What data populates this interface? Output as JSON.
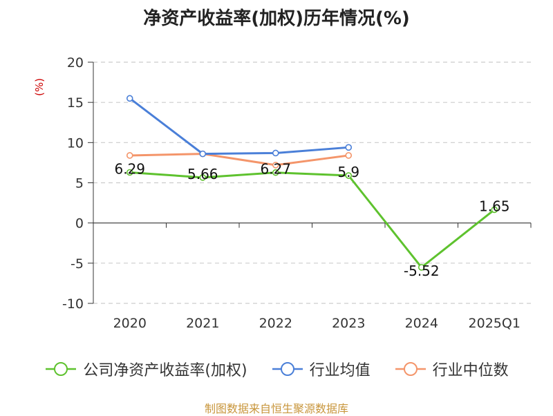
{
  "chart_data": {
    "type": "line",
    "title": "净资产收益率(加权)历年情况(%)",
    "ylabel": "(%)",
    "xlabel": "",
    "categories": [
      "2020",
      "2021",
      "2022",
      "2023",
      "2024",
      "2025Q1"
    ],
    "ylim": [
      -10,
      20
    ],
    "yticks": [
      "20",
      "15",
      "10",
      "5",
      "0",
      "-5",
      "-10"
    ],
    "grid": true,
    "legend_position": "bottom",
    "series": [
      {
        "name": "公司净资产收益率(加权)",
        "color": "#5ec22e",
        "values": [
          6.29,
          5.66,
          6.27,
          5.9,
          -5.52,
          1.65
        ],
        "labels": [
          "6.29",
          "5.66",
          "6.27",
          "5.9",
          "-5.52",
          "1.65"
        ]
      },
      {
        "name": "行业均值",
        "color": "#4a7fd8",
        "values": [
          15.5,
          8.6,
          8.7,
          9.4,
          null,
          null
        ]
      },
      {
        "name": "行业中位数",
        "color": "#f4956a",
        "values": [
          8.4,
          8.6,
          7.2,
          8.4,
          null,
          null
        ]
      }
    ]
  },
  "source_note": "制图数据来自恒生聚源数据库"
}
